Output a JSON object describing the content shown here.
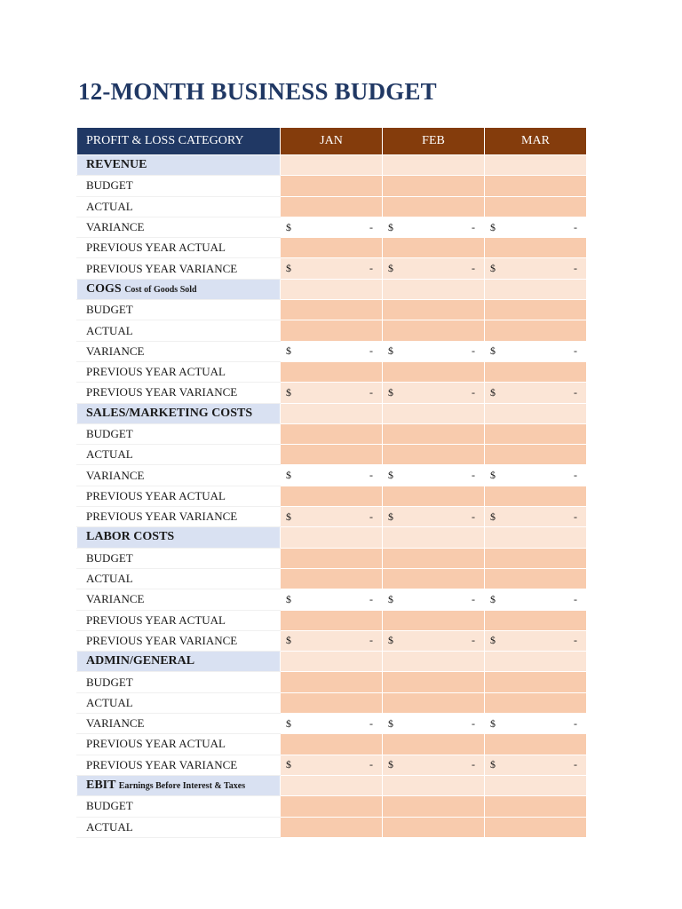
{
  "title": "12-MONTH BUSINESS BUDGET",
  "table": {
    "header": {
      "category": "PROFIT & LOSS CATEGORY",
      "months": [
        "JAN",
        "FEB",
        "MAR"
      ]
    },
    "currency_symbol": "$",
    "empty_value": "-",
    "sections": [
      {
        "name": "REVENUE",
        "subtitle": "",
        "rows": [
          "BUDGET",
          "ACTUAL",
          "VARIANCE",
          "PREVIOUS YEAR ACTUAL",
          "PREVIOUS YEAR VARIANCE"
        ]
      },
      {
        "name": "COGS",
        "subtitle": "Cost of Goods Sold",
        "rows": [
          "BUDGET",
          "ACTUAL",
          "VARIANCE",
          "PREVIOUS YEAR ACTUAL",
          "PREVIOUS YEAR VARIANCE"
        ]
      },
      {
        "name": "SALES/MARKETING COSTS",
        "subtitle": "",
        "rows": [
          "BUDGET",
          "ACTUAL",
          "VARIANCE",
          "PREVIOUS YEAR ACTUAL",
          "PREVIOUS YEAR VARIANCE"
        ]
      },
      {
        "name": "LABOR COSTS",
        "subtitle": "",
        "rows": [
          "BUDGET",
          "ACTUAL",
          "VARIANCE",
          "PREVIOUS YEAR ACTUAL",
          "PREVIOUS YEAR VARIANCE"
        ]
      },
      {
        "name": "ADMIN/GENERAL",
        "subtitle": "",
        "rows": [
          "BUDGET",
          "ACTUAL",
          "VARIANCE",
          "PREVIOUS YEAR ACTUAL",
          "PREVIOUS YEAR VARIANCE"
        ]
      },
      {
        "name": "EBIT",
        "subtitle": "Earnings Before Interest & Taxes",
        "rows": [
          "BUDGET",
          "ACTUAL"
        ]
      }
    ]
  },
  "colors": {
    "title": "#203864",
    "header_category_bg": "#203864",
    "header_month_bg": "#843c0c",
    "section_label_bg": "#d9e1f2",
    "section_cell_bg": "#fbe5d6",
    "input_cell_bg": "#f8cbad"
  }
}
